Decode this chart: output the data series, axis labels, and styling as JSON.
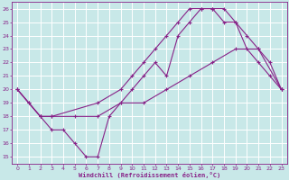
{
  "xlabel": "Windchill (Refroidissement éolien,°C)",
  "xlim": [
    -0.5,
    23.5
  ],
  "ylim": [
    14.5,
    26.5
  ],
  "yticks": [
    15,
    16,
    17,
    18,
    19,
    20,
    21,
    22,
    23,
    24,
    25,
    26
  ],
  "xticks": [
    0,
    1,
    2,
    3,
    4,
    5,
    6,
    7,
    8,
    9,
    10,
    11,
    12,
    13,
    14,
    15,
    16,
    17,
    18,
    19,
    20,
    21,
    22,
    23
  ],
  "background_color": "#c8e8e8",
  "grid_color": "#ffffff",
  "line_color": "#882288",
  "line1_x": [
    0,
    1,
    2,
    3,
    4,
    5,
    6,
    7,
    8,
    9,
    10,
    11,
    12,
    13,
    14,
    15,
    16,
    17,
    18,
    19,
    20,
    21,
    22,
    23
  ],
  "line1_y": [
    20,
    19,
    18,
    17,
    17,
    16,
    15,
    15,
    18,
    19,
    20,
    21,
    22,
    21,
    24,
    25,
    26,
    26,
    26,
    25,
    23,
    22,
    21,
    20
  ],
  "line2_x": [
    0,
    1,
    2,
    3,
    5,
    7,
    9,
    11,
    13,
    15,
    17,
    19,
    21,
    23
  ],
  "line2_y": [
    20,
    19,
    18,
    18,
    18,
    18,
    19,
    19,
    20,
    21,
    22,
    23,
    23,
    20
  ],
  "line3_x": [
    0,
    2,
    3,
    7,
    9,
    10,
    11,
    12,
    13,
    14,
    15,
    16,
    17,
    18,
    19,
    20,
    21,
    22,
    23
  ],
  "line3_y": [
    20,
    18,
    18,
    19,
    20,
    21,
    22,
    23,
    24,
    25,
    26,
    26,
    26,
    25,
    25,
    24,
    23,
    22,
    20
  ]
}
